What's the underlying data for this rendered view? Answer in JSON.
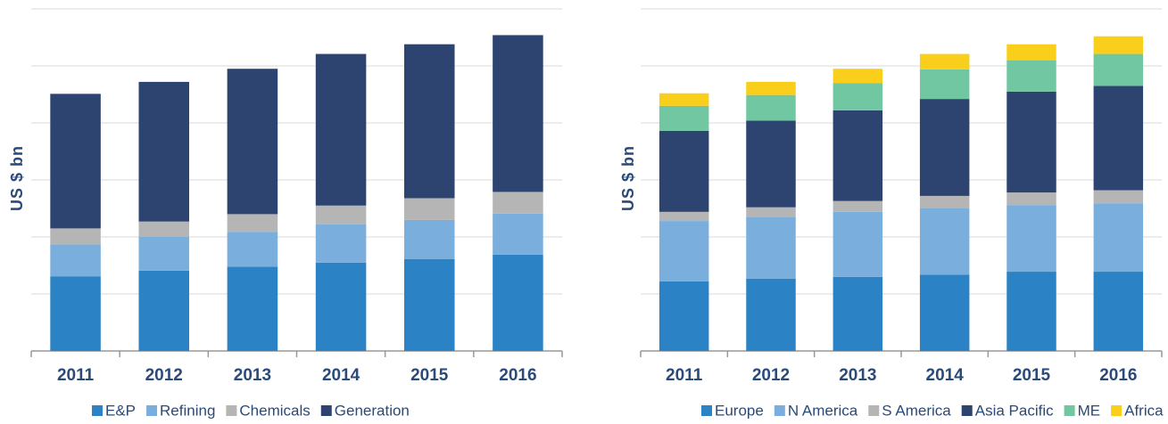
{
  "chart_data": [
    {
      "type": "stacked_bar",
      "ylabel": "US $ bn",
      "categories": [
        "2011",
        "2012",
        "2013",
        "2014",
        "2015",
        "2016"
      ],
      "ylim": [
        0,
        6
      ],
      "grid_lines": [
        1,
        2,
        3,
        4,
        5,
        6
      ],
      "series": [
        {
          "name": "E&P",
          "color": "#2b83c6",
          "values": [
            1.31,
            1.41,
            1.48,
            1.55,
            1.61,
            1.69
          ]
        },
        {
          "name": "Refining",
          "color": "#7aaedd",
          "values": [
            0.56,
            0.59,
            0.61,
            0.67,
            0.69,
            0.72
          ]
        },
        {
          "name": "Chemicals",
          "color": "#b5b5b5",
          "values": [
            0.28,
            0.27,
            0.31,
            0.33,
            0.38,
            0.38
          ]
        },
        {
          "name": "Generation",
          "color": "#2e4470",
          "values": [
            2.36,
            2.45,
            2.55,
            2.66,
            2.7,
            2.75
          ]
        }
      ]
    },
    {
      "type": "stacked_bar",
      "ylabel": "US $ bn",
      "categories": [
        "2011",
        "2012",
        "2013",
        "2014",
        "2015",
        "2016"
      ],
      "ylim": [
        0,
        6
      ],
      "grid_lines": [
        1,
        2,
        3,
        4,
        5,
        6
      ],
      "series": [
        {
          "name": "Europe",
          "color": "#2b83c6",
          "values": [
            1.22,
            1.27,
            1.3,
            1.34,
            1.39,
            1.39
          ]
        },
        {
          "name": "N America",
          "color": "#7aaedd",
          "values": [
            1.06,
            1.08,
            1.14,
            1.16,
            1.17,
            1.2
          ]
        },
        {
          "name": "S America",
          "color": "#b5b5b5",
          "values": [
            0.16,
            0.17,
            0.19,
            0.22,
            0.22,
            0.23
          ]
        },
        {
          "name": "Asia Pacific",
          "color": "#2e4470",
          "values": [
            1.42,
            1.52,
            1.59,
            1.7,
            1.77,
            1.83
          ]
        },
        {
          "name": "ME",
          "color": "#72c7a3",
          "values": [
            0.44,
            0.45,
            0.48,
            0.52,
            0.55,
            0.56
          ]
        },
        {
          "name": "Africa",
          "color": "#f9cf1c",
          "values": [
            0.22,
            0.23,
            0.25,
            0.27,
            0.28,
            0.31
          ]
        }
      ]
    }
  ]
}
